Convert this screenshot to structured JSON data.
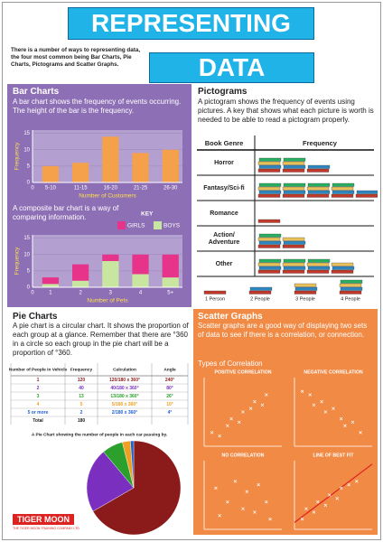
{
  "header": {
    "title_line1": "REPRESENTING",
    "title_line2": "DATA",
    "intro": "There is a number of ways to representing data, the four most common being Bar Charts, Pie Charts, Pictograms and Scatter Graphs."
  },
  "bar_charts": {
    "title": "Bar Charts",
    "text": "A bar chart shows the frequency of events occurring. The height of the bar is the frequency.",
    "bar_chart": {
      "type": "bar",
      "x_origin_label": "0",
      "categories": [
        "5-10",
        "11-15",
        "16-20",
        "21-25",
        "26-30"
      ],
      "values": [
        5,
        6,
        14,
        9,
        10
      ],
      "color": "#f5a04a",
      "ylim": [
        0,
        16
      ],
      "yticks": [
        0,
        5,
        10,
        15
      ],
      "xlabel": "Number of Customers",
      "ylabel": "Frequency"
    },
    "composite_text": "A composite bar chart is a way of comparing information.",
    "composite_chart": {
      "type": "bar",
      "x_origin_label": "0",
      "key_title": "KEY",
      "categories": [
        "1",
        "2",
        "3",
        "4",
        "5+"
      ],
      "series": [
        {
          "name": "BOYS",
          "color": "#c8e6a0",
          "values": [
            1,
            2,
            8,
            4,
            3
          ]
        },
        {
          "name": "GIRLS",
          "color": "#e8338a",
          "values": [
            2,
            5,
            2,
            6,
            7
          ]
        }
      ],
      "ylim": [
        0,
        16
      ],
      "yticks": [
        0,
        5,
        10,
        15
      ],
      "xlabel": "Number of Pets",
      "ylabel": "Frequency"
    }
  },
  "pictograms": {
    "title": "Pictograms",
    "text": "A pictogram shows the frequency of events using pictures. A key that shows what each picture is worth is needed to be able to read a pictogram properly.",
    "headers": [
      "Book Genre",
      "Frequency"
    ],
    "rows": [
      {
        "genre": "Horror",
        "frequency": 10
      },
      {
        "genre": "Fantasy/Sci-fi",
        "frequency": 18
      },
      {
        "genre": "Romance",
        "frequency": 1
      },
      {
        "genre": "Action/ Adventure",
        "frequency": 7
      },
      {
        "genre": "Other",
        "frequency": 15
      }
    ],
    "key": [
      {
        "label": "1 Person",
        "value": 1
      },
      {
        "label": "2 People",
        "value": 2
      },
      {
        "label": "3 People",
        "value": 3
      },
      {
        "label": "4 People",
        "value": 4
      }
    ]
  },
  "pie_charts": {
    "title": "Pie Charts",
    "text": "A pie chart is a circular chart. It shows the proportion of each group at a glance. Remember that there are °360 in a circle so each group in the pie chart will be a proportion of °360.",
    "table": {
      "headers": [
        "Number of People in Vehicle",
        "Frequency",
        "Calculation",
        "Angle"
      ],
      "rows": [
        {
          "people": "1",
          "frequency": 120,
          "calculation": "120/180 x 360°",
          "angle": 240,
          "angle_label": "240°",
          "color": "#8b1a1a"
        },
        {
          "people": "2",
          "frequency": 40,
          "calculation": "40/180 x 360°",
          "angle": 80,
          "angle_label": "80°",
          "color": "#7b2fbf"
        },
        {
          "people": "3",
          "frequency": 13,
          "calculation": "13/180 x 360°",
          "angle": 26,
          "angle_label": "26°",
          "color": "#2ca02c"
        },
        {
          "people": "4",
          "frequency": 5,
          "calculation": "5/180 x 360°",
          "angle": 10,
          "angle_label": "10°",
          "color": "#f0a020"
        },
        {
          "people": "5 or more",
          "frequency": 2,
          "calculation": "2/180 x 360°",
          "angle": 4,
          "angle_label": "4°",
          "color": "#1f5fd0"
        }
      ],
      "total": {
        "label": "Total",
        "frequency": 180
      }
    },
    "caption": "A Pie Chart showing the number of people in each car passing by."
  },
  "scatter_graphs": {
    "title": "Scatter Graphs",
    "text": "Scatter graphs are a good way of displaying two sets of data to see if there is a correlation, or connection.",
    "subtitle": "Types of Correlation",
    "xlim": [
      0,
      10
    ],
    "ylim": [
      0,
      10
    ],
    "graphs": [
      {
        "title": "POSITIVE CORRELATION",
        "x": [
          1,
          2,
          3,
          3.5,
          4.5,
          5,
          6,
          6.5,
          7.5,
          8
        ],
        "y": [
          2,
          1.5,
          3,
          4,
          3.5,
          5,
          5.5,
          6.5,
          6,
          7.5
        ]
      },
      {
        "title": "NEGATIVE CORRELATION",
        "x": [
          1,
          2,
          2.5,
          3.5,
          4,
          5,
          6,
          6.5,
          7.5,
          8.5
        ],
        "y": [
          8,
          7.5,
          6,
          6.5,
          5,
          5.5,
          4,
          3,
          3.5,
          2
        ]
      },
      {
        "title": "NO CORRELATION",
        "x": [
          1.5,
          2,
          3,
          4,
          5,
          5.5,
          6.5,
          7,
          8,
          8.5
        ],
        "y": [
          6,
          2,
          4,
          7,
          3,
          5.5,
          2.5,
          6.5,
          4,
          1.5
        ]
      },
      {
        "title": "LINE OF BEST FIT",
        "x": [
          1,
          1.5,
          2.5,
          3,
          4,
          4.5,
          5.5,
          6,
          7,
          8
        ],
        "y": [
          1.5,
          3,
          2.5,
          4,
          3.5,
          5,
          4.5,
          6,
          6.5,
          7
        ],
        "fit_line": {
          "x": [
            0,
            10
          ],
          "y": [
            1,
            9.5
          ],
          "color": "#e02020"
        }
      }
    ]
  },
  "logo": {
    "name": "TIGER MOON",
    "tagline": "THE TIGER MOON TRAINING COMPANY LTD"
  }
}
